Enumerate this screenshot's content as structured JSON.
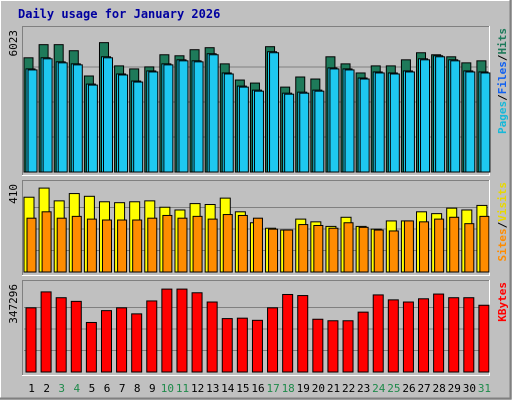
{
  "chart_data": {
    "type": "bar",
    "title": "Daily usage for January 2026",
    "categories": [
      "1",
      "2",
      "3",
      "4",
      "5",
      "6",
      "7",
      "8",
      "9",
      "10",
      "11",
      "12",
      "13",
      "14",
      "15",
      "16",
      "17",
      "18",
      "19",
      "20",
      "21",
      "22",
      "23",
      "24",
      "25",
      "26",
      "27",
      "28",
      "29",
      "30",
      "31"
    ],
    "weekend_days": [
      "3",
      "4",
      "10",
      "11",
      "17",
      "18",
      "24",
      "25",
      "31"
    ],
    "panels": [
      {
        "id": "top",
        "scale_max_label": "6023",
        "scale_max": 6023,
        "right_label_parts": [
          "Pages",
          "/",
          "Files",
          "/",
          "Hits"
        ],
        "series": [
          {
            "name": "Hits",
            "color": "#1e7a5a",
            "values": [
              5650,
              6300,
              6300,
              6000,
              4750,
              6400,
              5250,
              5100,
              5200,
              5800,
              5750,
              6050,
              6150,
              5350,
              4550,
              4400,
              6200,
              4200,
              4700,
              4600,
              5700,
              5350,
              4900,
              5250,
              5250,
              5550,
              5900,
              5800,
              5700,
              5400,
              5500
            ]
          },
          {
            "name": "Files",
            "color": "#18d8f8",
            "values": [
              5100,
              5650,
              5450,
              5350,
              4350,
              5700,
              4850,
              4500,
              5000,
              5350,
              5550,
              5500,
              5850,
              4900,
              4250,
              4050,
              5950,
              3900,
              3950,
              4050,
              5150,
              5100,
              4650,
              4950,
              4900,
              5000,
              5600,
              5750,
              5550,
              5000,
              4950
            ]
          },
          {
            "name": "Pages",
            "color": "#1ec8f0",
            "values": [
              5050,
              5600,
              5400,
              5300,
              4300,
              5650,
              4800,
              4450,
              4950,
              5300,
              5500,
              5450,
              5800,
              4850,
              4200,
              4000,
              5900,
              3850,
              3900,
              4000,
              5100,
              5050,
              4600,
              4900,
              4850,
              4950,
              5550,
              5700,
              5500,
              4950,
              4900
            ]
          }
        ]
      },
      {
        "id": "middle",
        "scale_max_label": "410",
        "scale_max": 410,
        "right_label_parts": [
          "Sites",
          "/",
          "Visits"
        ],
        "series": [
          {
            "name": "Visits",
            "color": "#ffff00",
            "values": [
              410,
              460,
              390,
              430,
              415,
              385,
              380,
              385,
              390,
              355,
              340,
              375,
              370,
              405,
              330,
              270,
              240,
              230,
              290,
              275,
              250,
              300,
              250,
              235,
              280,
              280,
              330,
              320,
              350,
              340,
              365
            ]
          },
          {
            "name": "Sites",
            "color": "#ff8c00",
            "values": [
              295,
              330,
              295,
              305,
              290,
              285,
              285,
              285,
              295,
              310,
              295,
              305,
              290,
              315,
              310,
              295,
              235,
              230,
              260,
              255,
              240,
              270,
              245,
              230,
              225,
              280,
              275,
              290,
              300,
              265,
              305
            ]
          }
        ]
      },
      {
        "id": "bottom",
        "scale_max_label": "347296",
        "scale_max": 347296,
        "right_label_parts": [
          "KBytes"
        ],
        "series": [
          {
            "name": "KBytes",
            "color": "#ff0000",
            "values": [
              298000,
              372000,
              345000,
              328000,
              230000,
              285000,
              298000,
              270000,
              330000,
              385000,
              385000,
              368000,
              325000,
              248000,
              250000,
              240000,
              298000,
              360000,
              355000,
              245000,
              238000,
              238000,
              278000,
              358000,
              335000,
              325000,
              340000,
              362000,
              345000,
              345000,
              310000
            ]
          }
        ]
      }
    ],
    "grid": true
  }
}
